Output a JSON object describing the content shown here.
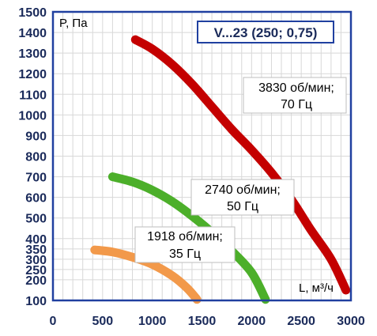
{
  "chart_data": {
    "type": "line",
    "title": "V...23 (250; 0,75)",
    "xlabel": "L, м³/ч",
    "ylabel": "P, Па",
    "xlim": [
      0,
      3000
    ],
    "ylim": [
      100,
      1500
    ],
    "x_ticks": [
      "0",
      "500",
      "1000",
      "1500",
      "2000",
      "2500",
      "3000"
    ],
    "y_ticks": [
      "100",
      "200",
      "250",
      "300",
      "350",
      "400",
      "500",
      "600",
      "700",
      "800",
      "900",
      "1000",
      "1100",
      "1200",
      "1300",
      "1400",
      "1500"
    ],
    "grid": true,
    "series": [
      {
        "name": "3830 об/мин; 70 Гц",
        "color": "#c40000",
        "points": [
          [
            830,
            1365
          ],
          [
            1000,
            1320
          ],
          [
            1200,
            1245
          ],
          [
            1400,
            1150
          ],
          [
            1600,
            1040
          ],
          [
            1800,
            930
          ],
          [
            2000,
            830
          ],
          [
            2200,
            720
          ],
          [
            2400,
            590
          ],
          [
            2600,
            440
          ],
          [
            2800,
            300
          ],
          [
            2950,
            150
          ]
        ]
      },
      {
        "name": "2740 об/мин; 50 Гц",
        "color": "#4caf2a",
        "points": [
          [
            600,
            700
          ],
          [
            800,
            675
          ],
          [
            1000,
            635
          ],
          [
            1200,
            580
          ],
          [
            1400,
            510
          ],
          [
            1600,
            430
          ],
          [
            1800,
            340
          ],
          [
            2000,
            235
          ],
          [
            2140,
            105
          ]
        ]
      },
      {
        "name": "1918 об/мин; 35 Гц",
        "color": "#f2994a",
        "points": [
          [
            420,
            345
          ],
          [
            600,
            335
          ],
          [
            800,
            310
          ],
          [
            1000,
            275
          ],
          [
            1200,
            220
          ],
          [
            1350,
            160
          ],
          [
            1450,
            105
          ]
        ]
      }
    ],
    "annotations": [
      {
        "line1": "3830 об/мин;",
        "line2": "70 Гц"
      },
      {
        "line1": "2740 об/мин;",
        "line2": "50 Гц"
      },
      {
        "line1": "1918 об/мин;",
        "line2": "35 Гц"
      }
    ],
    "colors": {
      "axis": "#2040a0",
      "grid": "#d8d8d8",
      "tick_text": "#1a2a5a"
    }
  }
}
